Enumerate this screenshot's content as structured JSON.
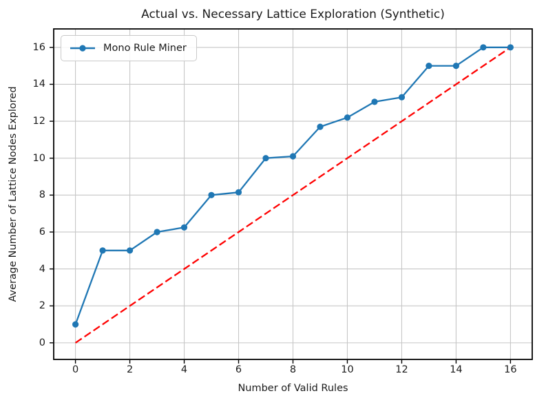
{
  "chart_data": {
    "type": "line",
    "title": "Actual vs. Necessary Lattice Exploration (Synthetic)",
    "xlabel": "Number of Valid Rules",
    "ylabel": "Average Number of Lattice Nodes Explored",
    "xlim": [
      -0.8,
      16.8
    ],
    "ylim": [
      -0.9,
      17.0
    ],
    "x_ticks": [
      0,
      2,
      4,
      6,
      8,
      10,
      12,
      14,
      16
    ],
    "y_ticks": [
      0,
      2,
      4,
      6,
      8,
      10,
      12,
      14,
      16
    ],
    "grid": true,
    "legend_position": "upper-left",
    "series": [
      {
        "name": "Mono Rule Miner",
        "color": "#1f77b4",
        "line_style": "solid",
        "marker": "circle",
        "show_in_legend": true,
        "x": [
          0,
          1,
          2,
          3,
          4,
          5,
          6,
          7,
          8,
          9,
          10,
          11,
          12,
          13,
          14,
          15,
          16
        ],
        "y": [
          1.0,
          5.0,
          5.0,
          6.0,
          6.25,
          8.0,
          8.15,
          10.0,
          10.1,
          11.7,
          12.2,
          13.05,
          13.3,
          15.0,
          15.0,
          16.0,
          16.0
        ]
      },
      {
        "name": "necessary-exploration-reference",
        "color": "#ff0000",
        "line_style": "dashed",
        "marker": "none",
        "show_in_legend": false,
        "x": [
          0,
          16
        ],
        "y": [
          0,
          16
        ]
      }
    ],
    "style": {
      "grid_color": "#c6c6c6",
      "spine_color": "#000000",
      "tick_color": "#000000",
      "background": "#ffffff"
    }
  }
}
